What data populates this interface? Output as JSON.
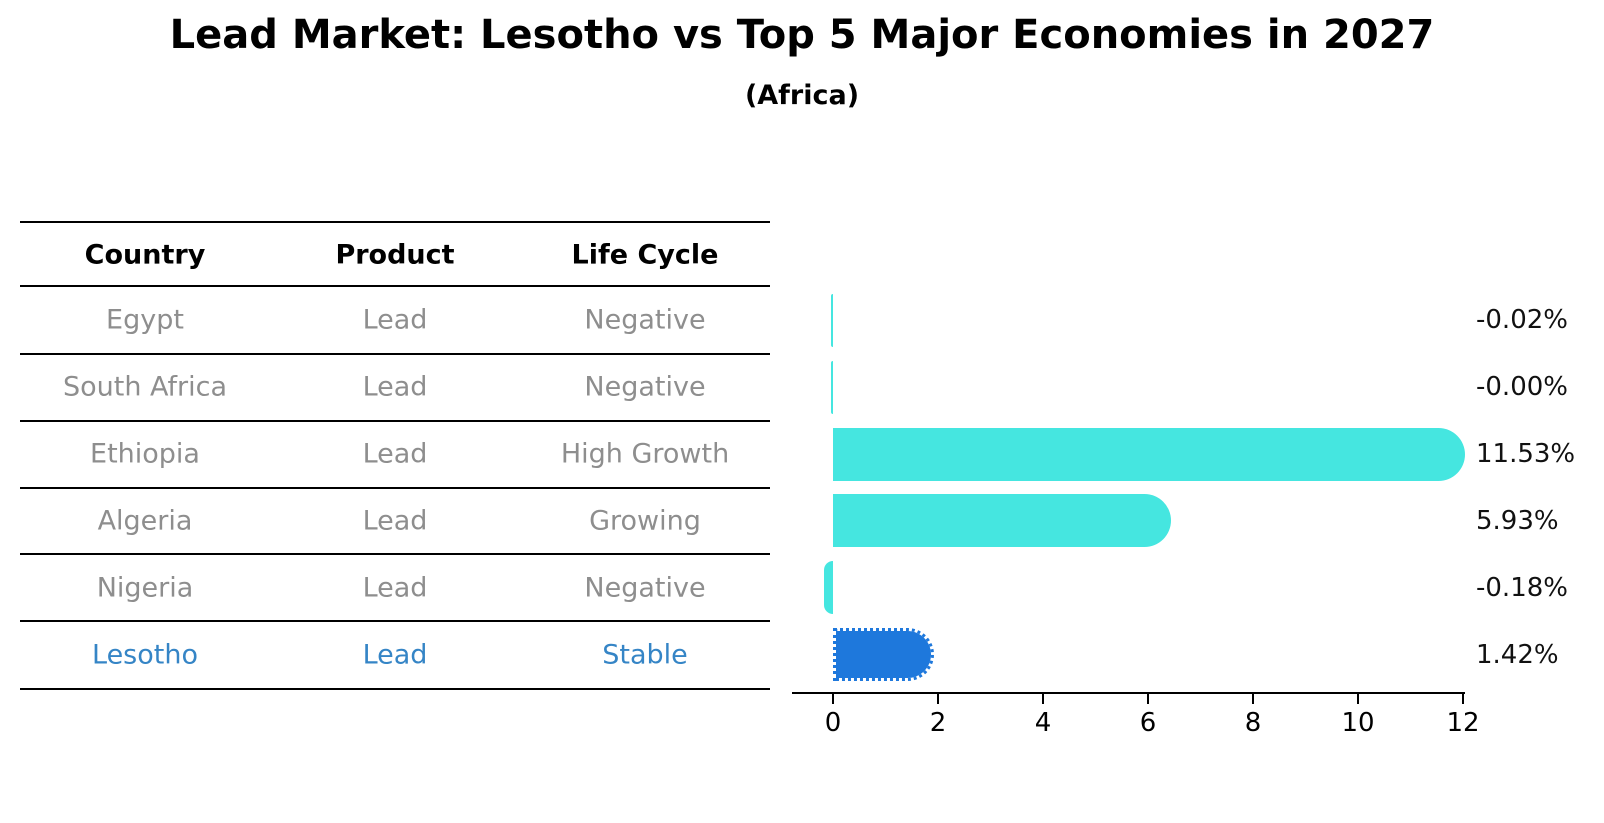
{
  "chart_data": {
    "type": "bar",
    "orientation": "horizontal",
    "title": "Lead Market: Lesotho vs Top 5 Major Economies in 2027",
    "subtitle": "(Africa)",
    "categories": [
      "Egypt",
      "South Africa",
      "Ethiopia",
      "Algeria",
      "Nigeria",
      "Lesotho"
    ],
    "values": [
      -0.02,
      -0.0,
      11.53,
      5.93,
      -0.18,
      1.42
    ],
    "value_labels": [
      "-0.02%",
      "-0.00%",
      "11.53%",
      "5.93%",
      "-0.18%",
      "1.42%"
    ],
    "xticks": [
      "0",
      "2",
      "4",
      "6",
      "8",
      "10",
      "12"
    ],
    "xtick_values": [
      0,
      2,
      4,
      6,
      8,
      10,
      12
    ],
    "xlim": [
      -0.8,
      12
    ],
    "xlabel": "",
    "ylabel": "",
    "grid": false,
    "legend_position": "none",
    "bar_color": "#45E6E0",
    "highlight_index": 5,
    "highlight_bar_color": "#1E78DC",
    "highlight_bar_edge_style": "dotted",
    "axis_color": "#000000",
    "value_label_color": "#111111"
  },
  "table": {
    "headers": [
      "Country",
      "Product",
      "Life Cycle"
    ],
    "rows": [
      {
        "country": "Egypt",
        "product": "Lead",
        "life_cycle": "Negative",
        "highlight": false
      },
      {
        "country": "South Africa",
        "product": "Lead",
        "life_cycle": "Negative",
        "highlight": false
      },
      {
        "country": "Ethiopia",
        "product": "Lead",
        "life_cycle": "High Growth",
        "highlight": false
      },
      {
        "country": "Algeria",
        "product": "Lead",
        "life_cycle": "Growing",
        "highlight": false
      },
      {
        "country": "Nigeria",
        "product": "Lead",
        "life_cycle": "Negative",
        "highlight": false
      },
      {
        "country": "Lesotho",
        "product": "Lead",
        "life_cycle": "Stable",
        "highlight": true
      }
    ],
    "row_text_color": "#8E8E8E",
    "header_text_color": "#000000",
    "highlight_text_color": "#3585C6",
    "line_color": "#000000"
  }
}
